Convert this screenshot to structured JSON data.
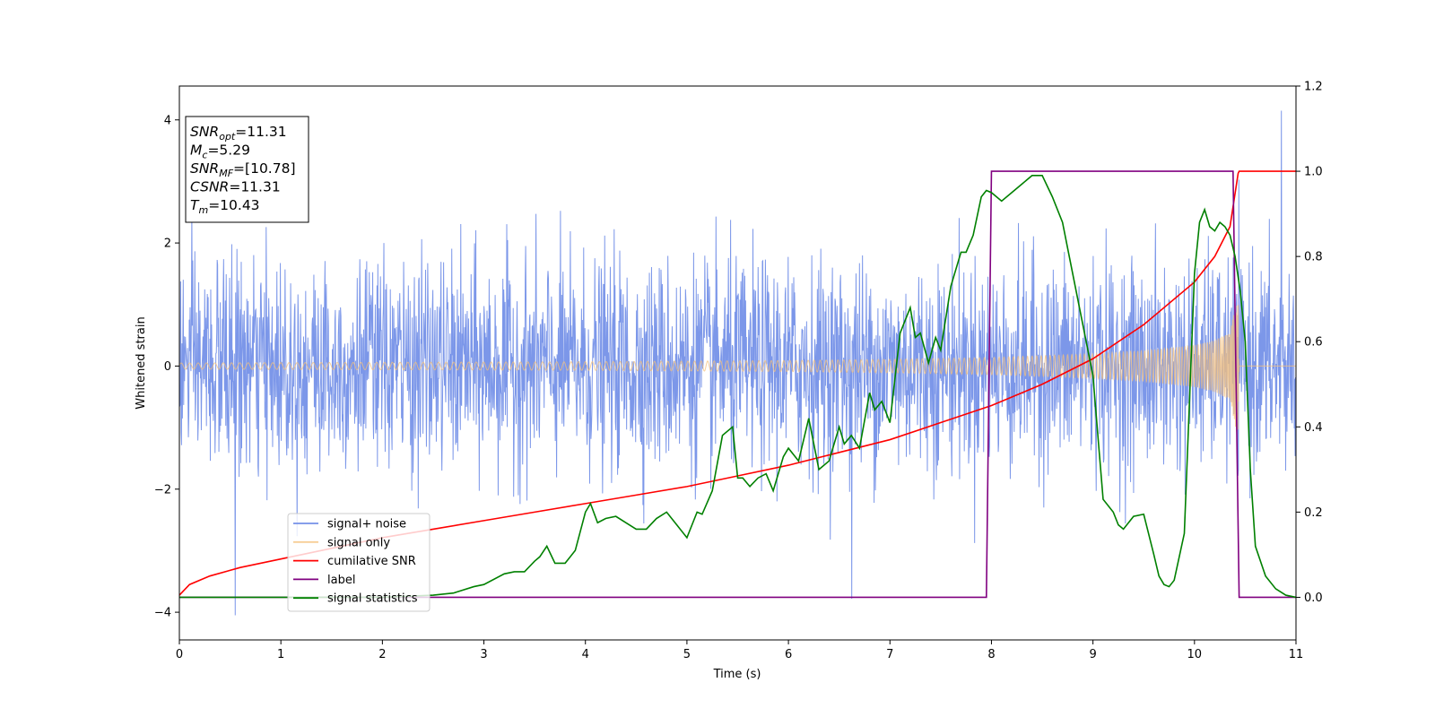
{
  "chart_data": {
    "type": "line",
    "title": "",
    "xlabel": "Time (s)",
    "ylabel": "Whitened strain",
    "y2label": "",
    "xlim": [
      0,
      11
    ],
    "ylim": [
      -4.45,
      4.55
    ],
    "y2lim": [
      -0.1,
      1.2
    ],
    "x_ticks": [
      0,
      1,
      2,
      3,
      4,
      5,
      6,
      7,
      8,
      9,
      10,
      11
    ],
    "y_ticks": [
      -4,
      -2,
      0,
      2,
      4
    ],
    "y2_ticks": [
      "0.0",
      "0.2",
      "0.4",
      "0.6",
      "0.8",
      "1.0",
      "1.2"
    ],
    "grid": false,
    "legend_position": "lower-left",
    "info_box": {
      "lines": [
        {
          "main": "SNR",
          "sub": "opt",
          "rest": "=11.31"
        },
        {
          "main": "M",
          "sub": "c",
          "rest": "=5.29"
        },
        {
          "main": "SNR",
          "sub": "MF",
          "rest": "=[10.78]"
        },
        {
          "main": "CSNR",
          "sub": "",
          "rest": "=11.31"
        },
        {
          "main": "T",
          "sub": "m",
          "rest": "=10.43"
        }
      ]
    },
    "series": [
      {
        "name": "signal+ noise",
        "axis": "left",
        "color": "#7591e8",
        "kind": "noise-band",
        "noise_std": 0.85,
        "peak_max": 4.15,
        "peak_min": -4.05,
        "x_range": [
          0,
          11
        ]
      },
      {
        "name": "signal only",
        "axis": "left",
        "color": "#f5c07a",
        "kind": "chirp",
        "amplitude_envelope": {
          "x": [
            0,
            2,
            4,
            6,
            7,
            8,
            9,
            9.5,
            10,
            10.2,
            10.35,
            10.43,
            10.44,
            11
          ],
          "y": [
            0.05,
            0.06,
            0.07,
            0.09,
            0.11,
            0.14,
            0.2,
            0.25,
            0.34,
            0.42,
            0.55,
            1.2,
            0,
            0
          ]
        }
      },
      {
        "name": "cumilative SNR",
        "axis": "right",
        "color": "#ff0000",
        "x": [
          0,
          0.1,
          0.3,
          0.6,
          1,
          1.5,
          2,
          2.5,
          3,
          3.5,
          4,
          4.5,
          5,
          5.5,
          6,
          6.5,
          7,
          7.5,
          8,
          8.5,
          9,
          9.5,
          10,
          10.2,
          10.35,
          10.43,
          10.44,
          11
        ],
        "y": [
          0.005,
          0.03,
          0.05,
          0.07,
          0.09,
          0.115,
          0.14,
          0.16,
          0.18,
          0.2,
          0.22,
          0.24,
          0.26,
          0.285,
          0.31,
          0.34,
          0.37,
          0.41,
          0.45,
          0.5,
          0.56,
          0.64,
          0.74,
          0.8,
          0.87,
          0.995,
          1.0,
          1.0
        ]
      },
      {
        "name": "label",
        "axis": "right",
        "color": "#800080",
        "x": [
          0,
          7.95,
          8.0,
          10.38,
          10.44,
          11
        ],
        "y": [
          0,
          0,
          1,
          1,
          0,
          0
        ]
      },
      {
        "name": "signal statistics",
        "axis": "right",
        "color": "#008000",
        "x": [
          0,
          1,
          2,
          2.5,
          2.7,
          2.9,
          3.0,
          3.2,
          3.3,
          3.4,
          3.5,
          3.55,
          3.62,
          3.7,
          3.8,
          3.9,
          4.0,
          4.05,
          4.12,
          4.2,
          4.3,
          4.4,
          4.5,
          4.6,
          4.7,
          4.8,
          4.9,
          5.0,
          5.1,
          5.15,
          5.25,
          5.35,
          5.45,
          5.5,
          5.55,
          5.62,
          5.7,
          5.78,
          5.85,
          5.95,
          6.0,
          6.1,
          6.2,
          6.3,
          6.4,
          6.5,
          6.55,
          6.62,
          6.7,
          6.8,
          6.85,
          6.92,
          7.0,
          7.1,
          7.2,
          7.25,
          7.3,
          7.38,
          7.45,
          7.5,
          7.6,
          7.7,
          7.75,
          7.82,
          7.9,
          7.95,
          8.0,
          8.1,
          8.2,
          8.3,
          8.4,
          8.5,
          8.6,
          8.7,
          8.8,
          9.0,
          9.1,
          9.2,
          9.25,
          9.3,
          9.4,
          9.5,
          9.6,
          9.65,
          9.7,
          9.75,
          9.8,
          9.9,
          10.0,
          10.05,
          10.1,
          10.15,
          10.2,
          10.25,
          10.3,
          10.35,
          10.4,
          10.45,
          10.5,
          10.55,
          10.6,
          10.7,
          10.8,
          10.9,
          11.0
        ],
        "y": [
          0.0,
          0.0,
          0.0,
          0.005,
          0.01,
          0.025,
          0.03,
          0.055,
          0.06,
          0.06,
          0.085,
          0.095,
          0.12,
          0.08,
          0.08,
          0.11,
          0.2,
          0.22,
          0.175,
          0.185,
          0.19,
          0.175,
          0.16,
          0.16,
          0.185,
          0.2,
          0.17,
          0.14,
          0.2,
          0.195,
          0.25,
          0.38,
          0.4,
          0.28,
          0.28,
          0.26,
          0.28,
          0.29,
          0.25,
          0.33,
          0.35,
          0.32,
          0.42,
          0.3,
          0.32,
          0.4,
          0.36,
          0.38,
          0.35,
          0.48,
          0.44,
          0.46,
          0.41,
          0.62,
          0.68,
          0.61,
          0.62,
          0.55,
          0.61,
          0.58,
          0.73,
          0.81,
          0.81,
          0.85,
          0.94,
          0.955,
          0.95,
          0.93,
          0.95,
          0.97,
          0.99,
          0.99,
          0.94,
          0.88,
          0.76,
          0.52,
          0.23,
          0.2,
          0.17,
          0.16,
          0.19,
          0.195,
          0.1,
          0.05,
          0.03,
          0.025,
          0.04,
          0.15,
          0.76,
          0.88,
          0.91,
          0.87,
          0.86,
          0.88,
          0.87,
          0.85,
          0.8,
          0.72,
          0.6,
          0.3,
          0.12,
          0.05,
          0.02,
          0.005,
          0.0
        ]
      }
    ]
  }
}
